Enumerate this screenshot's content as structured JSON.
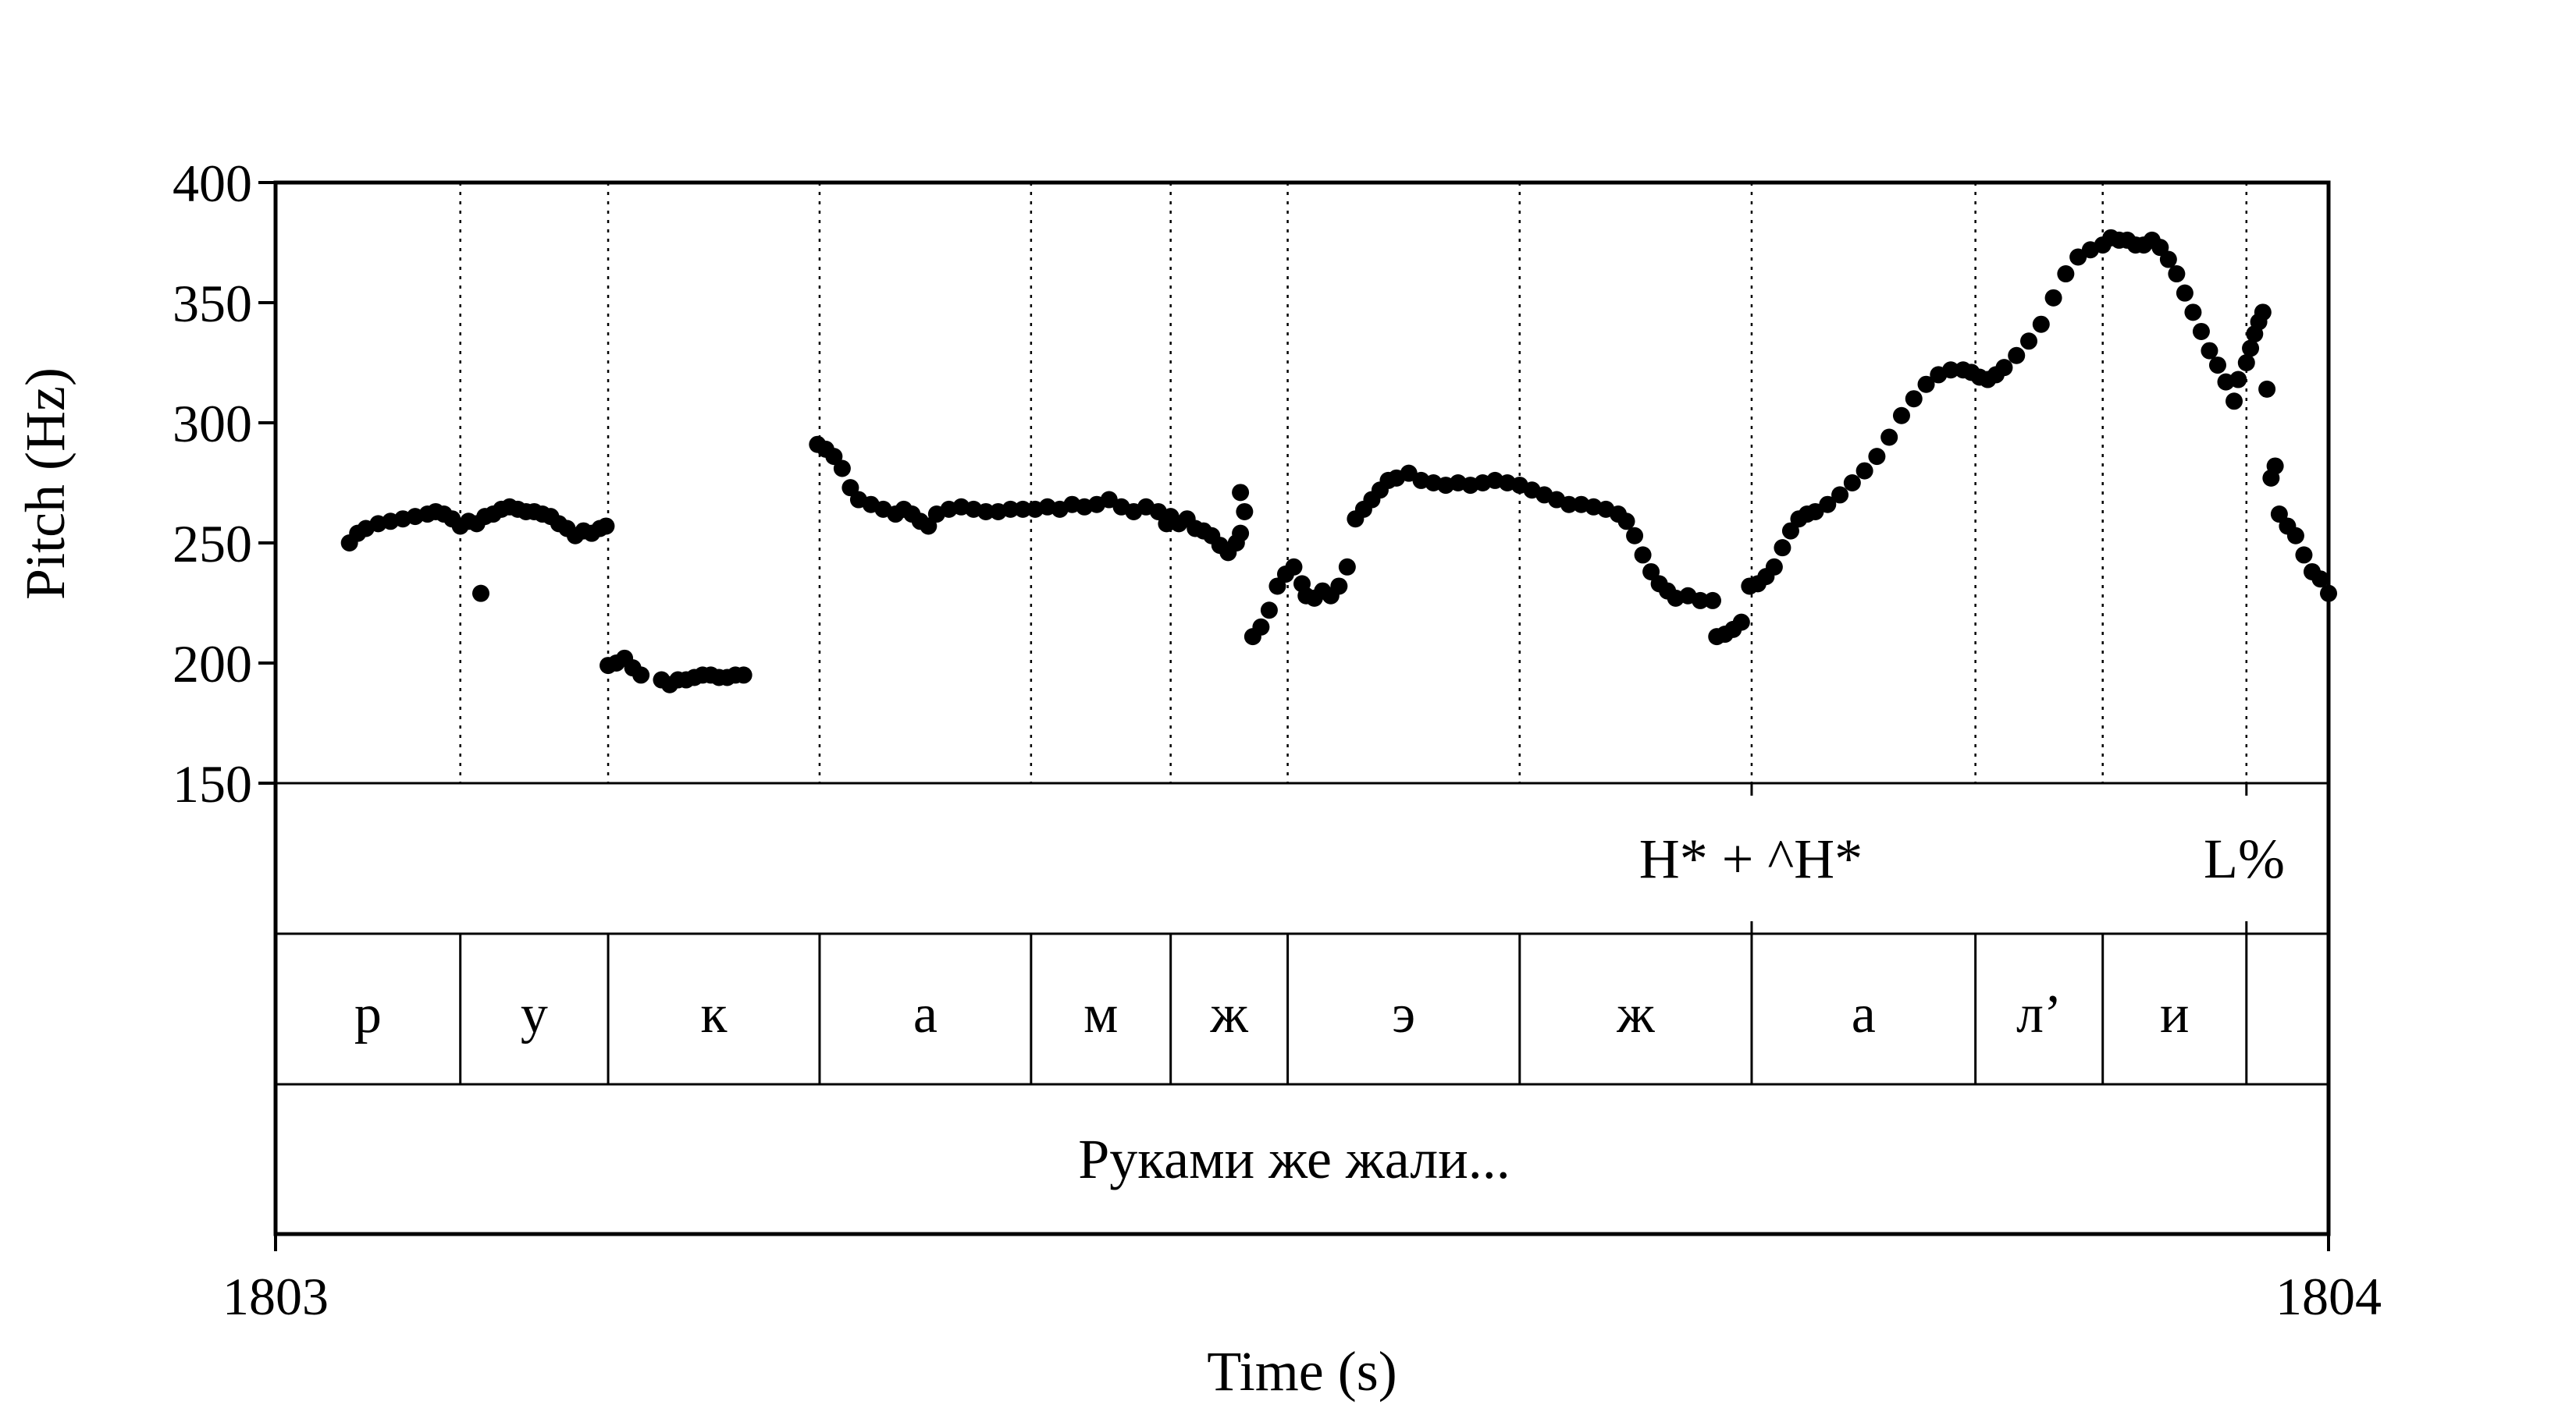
{
  "chart_data": {
    "type": "scatter",
    "title": "",
    "xlabel": "Time (s)",
    "ylabel": "Pitch (Hz)",
    "xlim": [
      1803,
      1804
    ],
    "ylim": [
      150,
      400
    ],
    "x_ticks": [
      "1803",
      "1804"
    ],
    "y_ticks": [
      "400",
      "350",
      "300",
      "250",
      "200",
      "150"
    ],
    "y_tick_values": [
      400,
      350,
      300,
      250,
      200,
      150
    ],
    "grid": "dotted vertical lines at segment boundaries",
    "series": [
      {
        "color": "#000000",
        "points": [
          [
            1803.036,
            250
          ],
          [
            1803.04,
            254
          ],
          [
            1803.044,
            256
          ],
          [
            1803.05,
            258
          ],
          [
            1803.056,
            259
          ],
          [
            1803.062,
            260
          ],
          [
            1803.068,
            261
          ],
          [
            1803.074,
            262
          ],
          [
            1803.078,
            263
          ],
          [
            1803.082,
            262
          ],
          [
            1803.086,
            260
          ],
          [
            1803.09,
            257
          ],
          [
            1803.094,
            259
          ],
          [
            1803.098,
            258
          ],
          [
            1803.102,
            261
          ],
          [
            1803.106,
            262
          ],
          [
            1803.11,
            264
          ],
          [
            1803.114,
            265
          ],
          [
            1803.118,
            264
          ],
          [
            1803.122,
            263
          ],
          [
            1803.126,
            263
          ],
          [
            1803.13,
            262
          ],
          [
            1803.134,
            261
          ],
          [
            1803.138,
            258
          ],
          [
            1803.142,
            256
          ],
          [
            1803.146,
            253
          ],
          [
            1803.15,
            255
          ],
          [
            1803.154,
            254
          ],
          [
            1803.158,
            256
          ],
          [
            1803.161,
            257
          ],
          [
            1803.162,
            199
          ],
          [
            1803.166,
            200
          ],
          [
            1803.17,
            202
          ],
          [
            1803.174,
            198
          ],
          [
            1803.178,
            195
          ],
          [
            1803.188,
            193
          ],
          [
            1803.192,
            191
          ],
          [
            1803.196,
            193
          ],
          [
            1803.2,
            193
          ],
          [
            1803.204,
            194
          ],
          [
            1803.208,
            195
          ],
          [
            1803.212,
            195
          ],
          [
            1803.216,
            194
          ],
          [
            1803.22,
            194
          ],
          [
            1803.224,
            195
          ],
          [
            1803.228,
            195
          ],
          [
            1803.264,
            291
          ],
          [
            1803.268,
            289
          ],
          [
            1803.272,
            286
          ],
          [
            1803.276,
            281
          ],
          [
            1803.28,
            273
          ],
          [
            1803.284,
            268
          ],
          [
            1803.29,
            266
          ],
          [
            1803.296,
            264
          ],
          [
            1803.302,
            262
          ],
          [
            1803.306,
            264
          ],
          [
            1803.31,
            262
          ],
          [
            1803.314,
            259
          ],
          [
            1803.318,
            257
          ],
          [
            1803.322,
            262
          ],
          [
            1803.328,
            264
          ],
          [
            1803.334,
            265
          ],
          [
            1803.34,
            264
          ],
          [
            1803.346,
            263
          ],
          [
            1803.352,
            263
          ],
          [
            1803.358,
            264
          ],
          [
            1803.364,
            264
          ],
          [
            1803.37,
            264
          ],
          [
            1803.376,
            265
          ],
          [
            1803.382,
            264
          ],
          [
            1803.388,
            266
          ],
          [
            1803.394,
            265
          ],
          [
            1803.4,
            266
          ],
          [
            1803.406,
            268
          ],
          [
            1803.412,
            265
          ],
          [
            1803.418,
            263
          ],
          [
            1803.424,
            265
          ],
          [
            1803.43,
            263
          ],
          [
            1803.436,
            261
          ],
          [
            1803.44,
            258
          ],
          [
            1803.444,
            260
          ],
          [
            1803.448,
            256
          ],
          [
            1803.452,
            255
          ],
          [
            1803.456,
            253
          ],
          [
            1803.46,
            249
          ],
          [
            1803.464,
            246
          ],
          [
            1803.468,
            250
          ],
          [
            1803.47,
            254
          ],
          [
            1803.434,
            258
          ],
          [
            1803.47,
            271
          ],
          [
            1803.472,
            263
          ],
          [
            1803.476,
            211
          ],
          [
            1803.48,
            215
          ],
          [
            1803.484,
            222
          ],
          [
            1803.488,
            232
          ],
          [
            1803.492,
            237
          ],
          [
            1803.496,
            240
          ],
          [
            1803.5,
            233
          ],
          [
            1803.502,
            228
          ],
          [
            1803.506,
            227
          ],
          [
            1803.51,
            230
          ],
          [
            1803.514,
            228
          ],
          [
            1803.518,
            232
          ],
          [
            1803.522,
            240
          ],
          [
            1803.526,
            260
          ],
          [
            1803.53,
            264
          ],
          [
            1803.534,
            268
          ],
          [
            1803.538,
            272
          ],
          [
            1803.542,
            276
          ],
          [
            1803.546,
            277
          ],
          [
            1803.552,
            279
          ],
          [
            1803.558,
            276
          ],
          [
            1803.564,
            275
          ],
          [
            1803.57,
            274
          ],
          [
            1803.576,
            275
          ],
          [
            1803.582,
            274
          ],
          [
            1803.588,
            275
          ],
          [
            1803.594,
            276
          ],
          [
            1803.6,
            275
          ],
          [
            1803.606,
            274
          ],
          [
            1803.612,
            272
          ],
          [
            1803.618,
            270
          ],
          [
            1803.624,
            268
          ],
          [
            1803.63,
            266
          ],
          [
            1803.636,
            266
          ],
          [
            1803.642,
            265
          ],
          [
            1803.648,
            264
          ],
          [
            1803.654,
            262
          ],
          [
            1803.658,
            259
          ],
          [
            1803.662,
            253
          ],
          [
            1803.666,
            245
          ],
          [
            1803.67,
            238
          ],
          [
            1803.674,
            233
          ],
          [
            1803.678,
            230
          ],
          [
            1803.682,
            227
          ],
          [
            1803.688,
            228
          ],
          [
            1803.694,
            226
          ],
          [
            1803.7,
            226
          ],
          [
            1803.702,
            211
          ],
          [
            1803.706,
            212
          ],
          [
            1803.71,
            214
          ],
          [
            1803.714,
            217
          ],
          [
            1803.718,
            232
          ],
          [
            1803.722,
            233
          ],
          [
            1803.726,
            236
          ],
          [
            1803.73,
            240
          ],
          [
            1803.734,
            248
          ],
          [
            1803.738,
            255
          ],
          [
            1803.742,
            260
          ],
          [
            1803.746,
            262
          ],
          [
            1803.75,
            263
          ],
          [
            1803.756,
            266
          ],
          [
            1803.762,
            270
          ],
          [
            1803.768,
            275
          ],
          [
            1803.774,
            280
          ],
          [
            1803.78,
            286
          ],
          [
            1803.786,
            294
          ],
          [
            1803.792,
            303
          ],
          [
            1803.798,
            310
          ],
          [
            1803.804,
            316
          ],
          [
            1803.81,
            320
          ],
          [
            1803.816,
            322
          ],
          [
            1803.822,
            322
          ],
          [
            1803.826,
            321
          ],
          [
            1803.83,
            319
          ],
          [
            1803.834,
            318
          ],
          [
            1803.838,
            320
          ],
          [
            1803.842,
            323
          ],
          [
            1803.848,
            328
          ],
          [
            1803.854,
            334
          ],
          [
            1803.86,
            341
          ],
          [
            1803.866,
            352
          ],
          [
            1803.872,
            362
          ],
          [
            1803.878,
            369
          ],
          [
            1803.884,
            372
          ],
          [
            1803.89,
            374
          ],
          [
            1803.894,
            377
          ],
          [
            1803.898,
            376
          ],
          [
            1803.902,
            376
          ],
          [
            1803.906,
            374
          ],
          [
            1803.91,
            374
          ],
          [
            1803.914,
            376
          ],
          [
            1803.918,
            373
          ],
          [
            1803.922,
            368
          ],
          [
            1803.926,
            362
          ],
          [
            1803.93,
            354
          ],
          [
            1803.934,
            346
          ],
          [
            1803.938,
            338
          ],
          [
            1803.942,
            330
          ],
          [
            1803.946,
            324
          ],
          [
            1803.95,
            317
          ],
          [
            1803.954,
            309
          ],
          [
            1803.956,
            318
          ],
          [
            1803.96,
            325
          ],
          [
            1803.962,
            331
          ],
          [
            1803.964,
            337
          ],
          [
            1803.966,
            342
          ],
          [
            1803.968,
            346
          ],
          [
            1803.97,
            314
          ],
          [
            1803.972,
            277
          ],
          [
            1803.974,
            282
          ],
          [
            1803.976,
            262
          ],
          [
            1803.98,
            257
          ],
          [
            1803.984,
            253
          ],
          [
            1803.988,
            245
          ],
          [
            1803.992,
            238
          ],
          [
            1803.996,
            235
          ],
          [
            1803.1,
            229
          ],
          [
            1804.0,
            229
          ]
        ]
      }
    ]
  },
  "tiers": {
    "tone": {
      "labels": [
        "H* + ^H*",
        "L%"
      ]
    },
    "segments": {
      "labels": [
        "р",
        "у",
        "к",
        "а",
        "м",
        "ж",
        "э",
        "ж",
        "а",
        "л’",
        "и"
      ],
      "boundaries": [
        1803.09,
        1803.162,
        1803.265,
        1803.368,
        1803.436,
        1803.493,
        1803.606,
        1803.719,
        1803.828,
        1803.89,
        1803.96
      ]
    },
    "sentence": {
      "text": "Руками же жали..."
    }
  }
}
